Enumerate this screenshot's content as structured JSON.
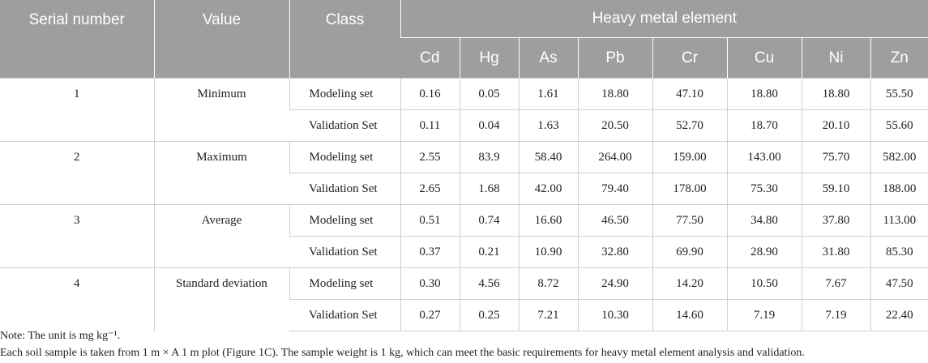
{
  "headers": {
    "serial": "Serial number",
    "value": "Value",
    "class": "Class",
    "group": "Heavy metal element",
    "elements": [
      "Cd",
      "Hg",
      "As",
      "Pb",
      "Cr",
      "Cu",
      "Ni",
      "Zn"
    ]
  },
  "rows": [
    {
      "serial": "1",
      "value": "Minimum",
      "sets": [
        {
          "class": "Modeling set",
          "values": [
            "0.16",
            "0.05",
            "1.61",
            "18.80",
            "47.10",
            "18.80",
            "18.80",
            "55.50"
          ]
        },
        {
          "class": "Validation Set",
          "values": [
            "0.11",
            "0.04",
            "1.63",
            "20.50",
            "52.70",
            "18.70",
            "20.10",
            "55.60"
          ]
        }
      ]
    },
    {
      "serial": "2",
      "value": "Maximum",
      "sets": [
        {
          "class": "Modeling set",
          "values": [
            "2.55",
            "83.9",
            "58.40",
            "264.00",
            "159.00",
            "143.00",
            "75.70",
            "582.00"
          ]
        },
        {
          "class": "Validation Set",
          "values": [
            "2.65",
            "1.68",
            "42.00",
            "79.40",
            "178.00",
            "75.30",
            "59.10",
            "188.00"
          ]
        }
      ]
    },
    {
      "serial": "3",
      "value": "Average",
      "sets": [
        {
          "class": "Modeling set",
          "values": [
            "0.51",
            "0.74",
            "16.60",
            "46.50",
            "77.50",
            "34.80",
            "37.80",
            "113.00"
          ]
        },
        {
          "class": "Validation Set",
          "values": [
            "0.37",
            "0.21",
            "10.90",
            "32.80",
            "69.90",
            "28.90",
            "31.80",
            "85.30"
          ]
        }
      ]
    },
    {
      "serial": "4",
      "value": "Standard deviation",
      "sets": [
        {
          "class": "Modeling set",
          "values": [
            "0.30",
            "4.56",
            "8.72",
            "24.90",
            "14.20",
            "10.50",
            "7.67",
            "47.50"
          ]
        },
        {
          "class": "Validation Set",
          "values": [
            "0.27",
            "0.25",
            "7.21",
            "10.30",
            "14.60",
            "7.19",
            "7.19",
            "22.40"
          ]
        }
      ]
    }
  ],
  "notes": [
    "Note: The unit is mg kg⁻¹.",
    "Each soil sample is taken from 1 m × A 1 m plot (Figure 1C). The sample weight is 1 kg, which can meet the basic requirements for heavy metal element analysis and validation."
  ]
}
